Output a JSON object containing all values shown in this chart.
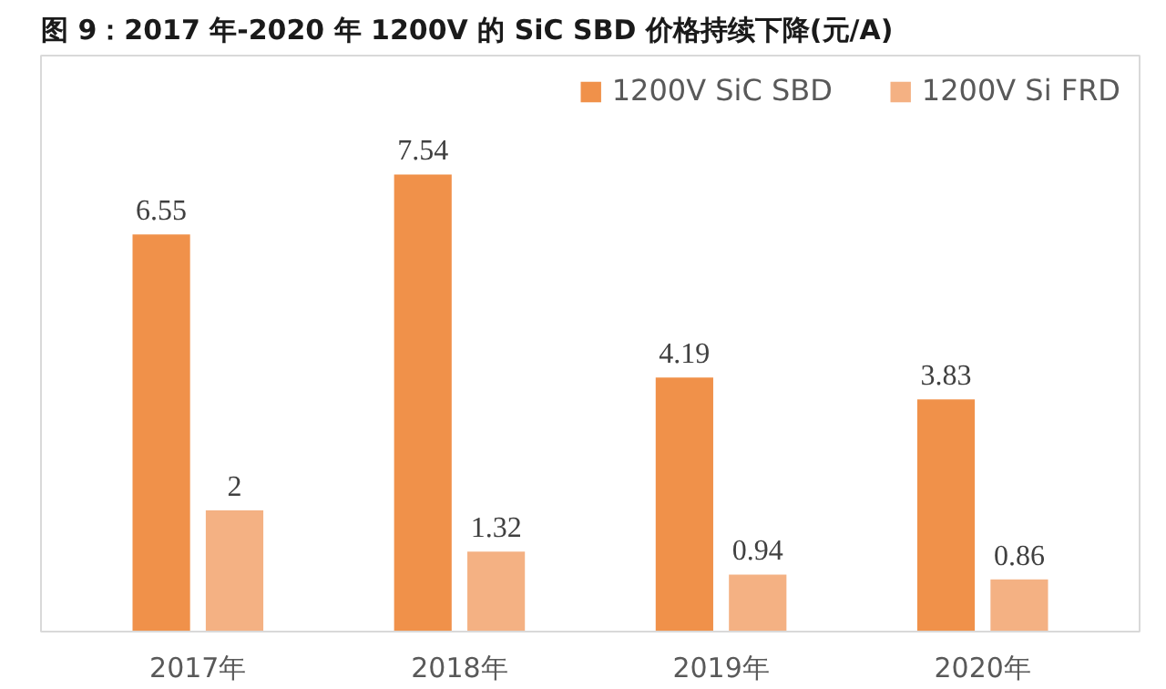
{
  "chart_data": {
    "type": "bar",
    "title": "图 9：2017 年-2020 年 1200V 的 SiC SBD 价格持续下降(元/A)",
    "categories": [
      "2017年",
      "2018年",
      "2019年",
      "2020年"
    ],
    "series": [
      {
        "name": "1200V SiC SBD",
        "color": "#f0914a",
        "values": [
          6.55,
          7.54,
          4.19,
          3.83
        ]
      },
      {
        "name": "1200V Si FRD",
        "color": "#f4b183",
        "values": [
          2,
          1.32,
          0.94,
          0.86
        ]
      }
    ],
    "ylim": [
      0,
      9.5
    ],
    "tick_labels": "x",
    "data_labels": true,
    "legend": "top right",
    "grid": false
  }
}
